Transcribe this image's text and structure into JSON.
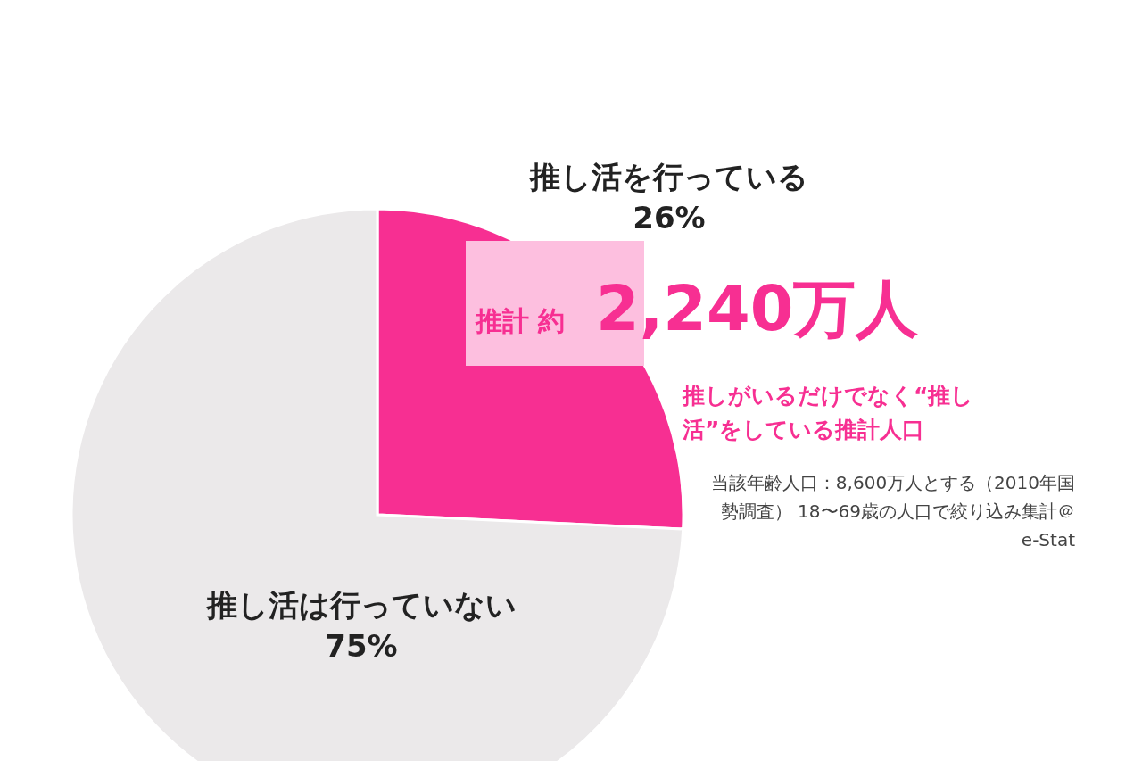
{
  "chart_data": {
    "type": "pie",
    "categories": [
      "推し活を行っている",
      "推し活は行っていない"
    ],
    "values": [
      26,
      75
    ],
    "value_labels": [
      "26%",
      "75%"
    ],
    "colors": [
      "#f72f92",
      "#ebe9ea"
    ],
    "annotations": [
      "推計 約",
      "2,240万人",
      "推しがいるだけでなく“推し活”をしている推計人口",
      "当該年齢人口：8,600万人とする（2010年国勢調査） 18〜69歳の人口で絞り込み集計＠e-Stat"
    ]
  }
}
